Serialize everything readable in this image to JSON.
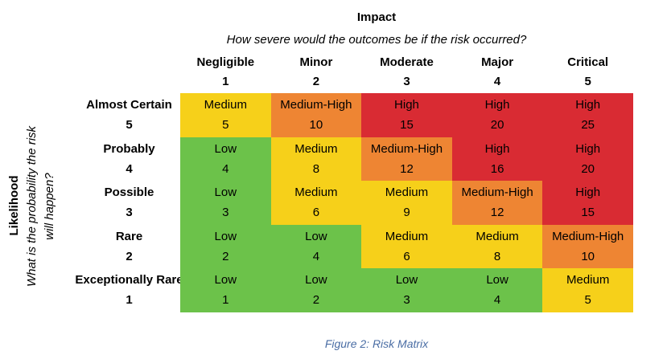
{
  "impact_axis": {
    "label": "Impact",
    "question": "How severe would the outcomes be if the risk occurred?",
    "levels": [
      {
        "name": "Negligible",
        "value": "1"
      },
      {
        "name": "Minor",
        "value": "2"
      },
      {
        "name": "Moderate",
        "value": "3"
      },
      {
        "name": "Major",
        "value": "4"
      },
      {
        "name": "Critical",
        "value": "5"
      }
    ]
  },
  "likelihood_axis": {
    "label": "Likelihood",
    "question": "What is the probability the risk will happen?",
    "question_lines": [
      "What is the probability the risk",
      "will happen?"
    ]
  },
  "matrix_rows": [
    {
      "name": "Almost Certain",
      "value": "5",
      "cells": [
        {
          "rating": "Medium",
          "score": "5",
          "level": "medium"
        },
        {
          "rating": "Medium-High",
          "score": "10",
          "level": "medium_high"
        },
        {
          "rating": "High",
          "score": "15",
          "level": "high"
        },
        {
          "rating": "High",
          "score": "20",
          "level": "high"
        },
        {
          "rating": "High",
          "score": "25",
          "level": "high"
        }
      ]
    },
    {
      "name": "Probably",
      "value": "4",
      "cells": [
        {
          "rating": "Low",
          "score": "4",
          "level": "low"
        },
        {
          "rating": "Medium",
          "score": "8",
          "level": "medium"
        },
        {
          "rating": "Medium-High",
          "score": "12",
          "level": "medium_high"
        },
        {
          "rating": "High",
          "score": "16",
          "level": "high"
        },
        {
          "rating": "High",
          "score": "20",
          "level": "high"
        }
      ]
    },
    {
      "name": "Possible",
      "value": "3",
      "cells": [
        {
          "rating": "Low",
          "score": "3",
          "level": "low"
        },
        {
          "rating": "Medium",
          "score": "6",
          "level": "medium"
        },
        {
          "rating": "Medium",
          "score": "9",
          "level": "medium"
        },
        {
          "rating": "Medium-High",
          "score": "12",
          "level": "medium_high"
        },
        {
          "rating": "High",
          "score": "15",
          "level": "high"
        }
      ]
    },
    {
      "name": "Rare",
      "value": "2",
      "cells": [
        {
          "rating": "Low",
          "score": "2",
          "level": "low"
        },
        {
          "rating": "Low",
          "score": "4",
          "level": "low"
        },
        {
          "rating": "Medium",
          "score": "6",
          "level": "medium"
        },
        {
          "rating": "Medium",
          "score": "8",
          "level": "medium"
        },
        {
          "rating": "Medium-High",
          "score": "10",
          "level": "medium_high"
        }
      ]
    },
    {
      "name": "Exceptionally Rare",
      "value": "1",
      "cells": [
        {
          "rating": "Low",
          "score": "1",
          "level": "low"
        },
        {
          "rating": "Low",
          "score": "2",
          "level": "low"
        },
        {
          "rating": "Low",
          "score": "3",
          "level": "low"
        },
        {
          "rating": "Low",
          "score": "4",
          "level": "low"
        },
        {
          "rating": "Medium",
          "score": "5",
          "level": "medium"
        }
      ]
    }
  ],
  "caption": "Figure 2: Risk Matrix",
  "colors": {
    "low": "#6CC24A",
    "medium": "#F6D01A",
    "medium_high": "#EE8533",
    "high": "#D92B33",
    "caption_text": "#4A6DA4"
  }
}
